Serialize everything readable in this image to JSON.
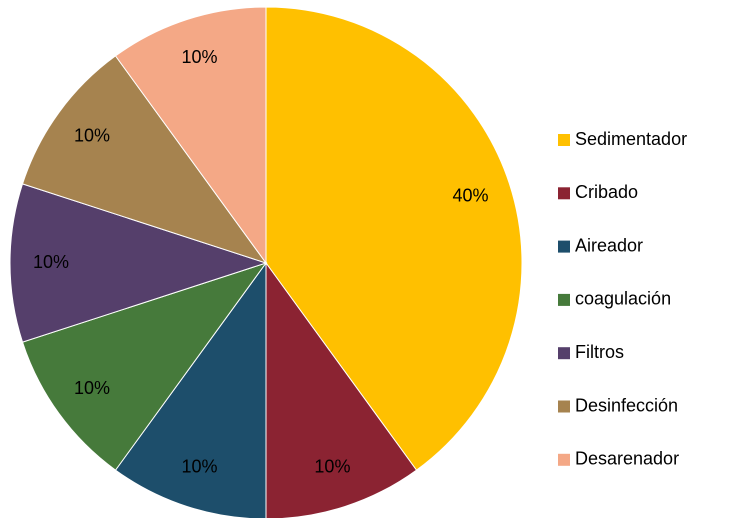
{
  "chart_data": {
    "type": "pie",
    "categories": [
      "Sedimentador",
      "Cribado",
      "Aireador",
      "coagulación",
      "Filtros",
      "Desinfección",
      "Desarenador"
    ],
    "values": [
      40,
      10,
      10,
      10,
      10,
      10,
      10
    ],
    "value_labels": [
      "40%",
      "10%",
      "10%",
      "10%",
      "10%",
      "10%",
      "10%"
    ],
    "colors": [
      "#ffc000",
      "#8b2332",
      "#1d4e6b",
      "#467a3b",
      "#553f6b",
      "#a6834f",
      "#f4a886"
    ],
    "legend": "right"
  }
}
